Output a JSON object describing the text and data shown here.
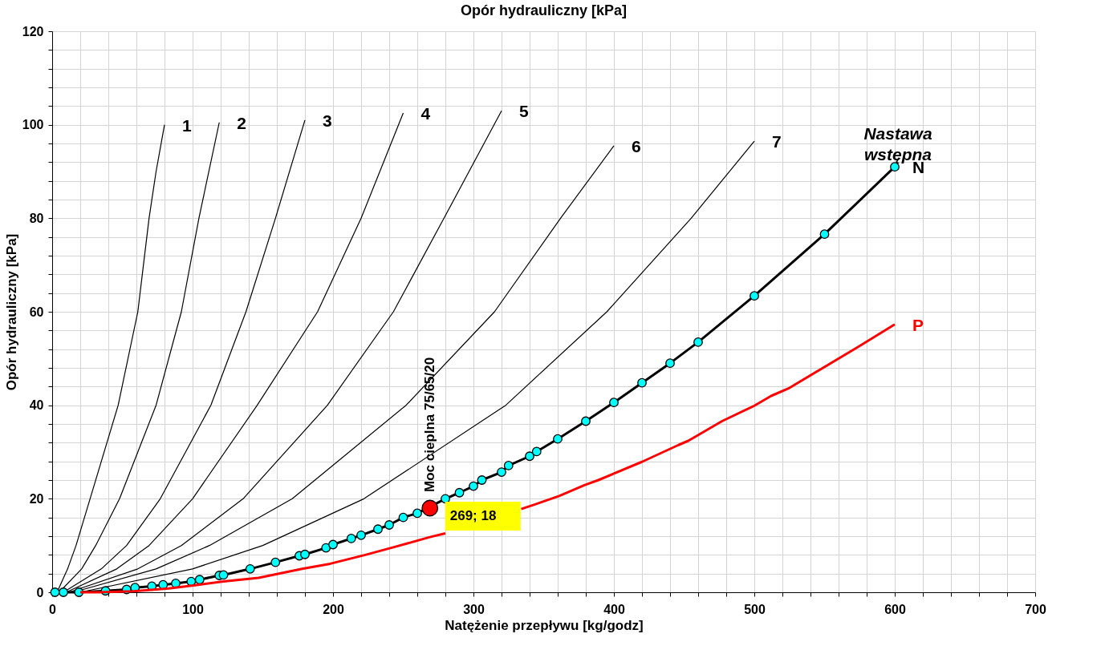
{
  "chart_data": {
    "type": "line",
    "title": "Opór hydrauliczny [kPa]",
    "xlabel": "Natężenie przepływu [kg/godz]",
    "ylabel": "Opór hydrauliczny [kPa]",
    "xlim": [
      0,
      700
    ],
    "ylim": [
      0,
      120
    ],
    "xticks": [
      0,
      {
        "value": 20,
        "label": null
      },
      {
        "value": 40,
        "label": null
      },
      {
        "value": 60,
        "label": null
      },
      {
        "value": 80,
        "label": null
      },
      100,
      {
        "value": 120,
        "label": null
      },
      {
        "value": 140,
        "label": null
      },
      {
        "value": 160,
        "label": null
      },
      {
        "value": 180,
        "label": null
      },
      200,
      {
        "value": 220,
        "label": null
      },
      {
        "value": 240,
        "label": null
      },
      {
        "value": 260,
        "label": null
      },
      {
        "value": 280,
        "label": null
      },
      300,
      {
        "value": 320,
        "label": null
      },
      {
        "value": 340,
        "label": null
      },
      {
        "value": 360,
        "label": null
      },
      {
        "value": 380,
        "label": null
      },
      400,
      {
        "value": 420,
        "label": null
      },
      {
        "value": 440,
        "label": null
      },
      {
        "value": 460,
        "label": null
      },
      {
        "value": 480,
        "label": null
      },
      500,
      {
        "value": 520,
        "label": null
      },
      {
        "value": 540,
        "label": null
      },
      {
        "value": 560,
        "label": null
      },
      {
        "value": 580,
        "label": null
      },
      600,
      {
        "value": 620,
        "label": null
      },
      {
        "value": 640,
        "label": null
      },
      {
        "value": 660,
        "label": null
      },
      {
        "value": 680,
        "label": null
      },
      700
    ],
    "yticks": [
      0,
      {
        "value": 4,
        "label": null
      },
      {
        "value": 8,
        "label": null
      },
      {
        "value": 12,
        "label": null
      },
      {
        "value": 16,
        "label": null
      },
      20,
      {
        "value": 24,
        "label": null
      },
      {
        "value": 28,
        "label": null
      },
      {
        "value": 32,
        "label": null
      },
      {
        "value": 36,
        "label": null
      },
      40,
      {
        "value": 44,
        "label": null
      },
      {
        "value": 48,
        "label": null
      },
      {
        "value": 52,
        "label": null
      },
      {
        "value": 56,
        "label": null
      },
      60,
      {
        "value": 64,
        "label": null
      },
      {
        "value": 68,
        "label": null
      },
      {
        "value": 72,
        "label": null
      },
      {
        "value": 76,
        "label": null
      },
      80,
      {
        "value": 84,
        "label": null
      },
      {
        "value": 88,
        "label": null
      },
      {
        "value": 92,
        "label": null
      },
      {
        "value": 96,
        "label": null
      },
      100,
      {
        "value": 104,
        "label": null
      },
      {
        "value": 108,
        "label": null
      },
      {
        "value": 112,
        "label": null
      },
      {
        "value": 116,
        "label": null
      },
      120
    ],
    "grid": true,
    "line_style": "solid",
    "series": [
      {
        "name": "1",
        "color": "#000000",
        "x": [
          3.5,
          11,
          17,
          27,
          47,
          61,
          65,
          69,
          74,
          80
        ],
        "values": [
          0,
          5,
          10,
          20,
          40,
          60,
          70,
          80,
          90,
          100
        ]
      },
      {
        "name": "2",
        "color": "#000000",
        "x": [
          5,
          21,
          31,
          48,
          74,
          92,
          104.5,
          119
        ],
        "values": [
          0,
          5,
          10,
          20,
          40,
          60,
          80,
          100.5
        ]
      },
      {
        "name": "3",
        "color": "#000000",
        "x": [
          8,
          35,
          53,
          77,
          113,
          138,
          159,
          180
        ],
        "values": [
          0,
          5,
          10,
          20,
          40,
          60,
          80,
          101
        ]
      },
      {
        "name": "4",
        "color": "#000000",
        "x": [
          10,
          46,
          69,
          100,
          146,
          189,
          220,
          250
        ],
        "values": [
          0,
          5,
          10,
          20,
          40,
          60,
          80,
          102.5
        ]
      },
      {
        "name": "5",
        "color": "#000000",
        "x": [
          12,
          61,
          92,
          136,
          196,
          243,
          279,
          320
        ],
        "values": [
          0,
          5,
          10,
          20,
          40,
          60,
          80,
          103
        ]
      },
      {
        "name": "6",
        "color": "#000000",
        "x": [
          15,
          74,
          112,
          171,
          252,
          315,
          362,
          400
        ],
        "values": [
          0,
          5,
          10,
          20,
          40,
          60,
          80,
          95.5
        ]
      },
      {
        "name": "7",
        "color": "#000000",
        "x": [
          20,
          100,
          150,
          222,
          323,
          395,
          455,
          500
        ],
        "values": [
          0,
          5,
          10,
          20,
          40,
          60,
          80,
          96.5
        ]
      },
      {
        "name": "N",
        "color": "#000000",
        "marker": "circle",
        "x": [
          2,
          8,
          19,
          38,
          53,
          59,
          71,
          79,
          88,
          99,
          105,
          119,
          122,
          141,
          159,
          176,
          180,
          195,
          200,
          213,
          220,
          232,
          240,
          250,
          260,
          280,
          290,
          300,
          306,
          320,
          325,
          340,
          345,
          360,
          380,
          400,
          420,
          440,
          460,
          500,
          550,
          600
        ],
        "values": [
          0,
          0,
          0,
          0.3,
          0.6,
          1,
          1.3,
          1.6,
          1.9,
          2.3,
          2.7,
          3.6,
          3.7,
          5,
          6.4,
          7.8,
          8.1,
          9.5,
          10.2,
          11.5,
          12.2,
          13.5,
          14.4,
          16,
          16.9,
          20,
          21.3,
          22.7,
          24,
          25.7,
          27.1,
          29.1,
          30.1,
          32.8,
          36.6,
          40.6,
          44.8,
          49,
          53.5,
          63.4,
          76.6,
          91
        ]
      },
      {
        "name": "P",
        "color": "#ff0000",
        "x": [
          20,
          33,
          58,
          83,
          104,
          122,
          147,
          178,
          198,
          223,
          244,
          269,
          280,
          300,
          334,
          343,
          361,
          379,
          389,
          400,
          420,
          446,
          453,
          477,
          500,
          512,
          525,
          574,
          600
        ],
        "values": [
          0,
          0,
          0.2,
          0.8,
          1.6,
          2.3,
          3.1,
          5,
          6.1,
          8,
          9.7,
          11.8,
          12.6,
          null,
          17.8,
          18.7,
          20.6,
          22.9,
          24,
          25.4,
          27.9,
          31.5,
          32.4,
          36.6,
          39.9,
          42,
          43.7,
          52.5,
          57.3
        ]
      },
      {
        "type": "scatter",
        "color": "#ff0000",
        "x": [
          269
        ],
        "values": [
          18
        ],
        "value_labels": [
          "269; 18"
        ]
      }
    ],
    "annotations": [
      {
        "text": "Moc cieplna 75/65/20",
        "x": 269,
        "y": 18
      },
      "Nastawa wstępna"
    ]
  }
}
